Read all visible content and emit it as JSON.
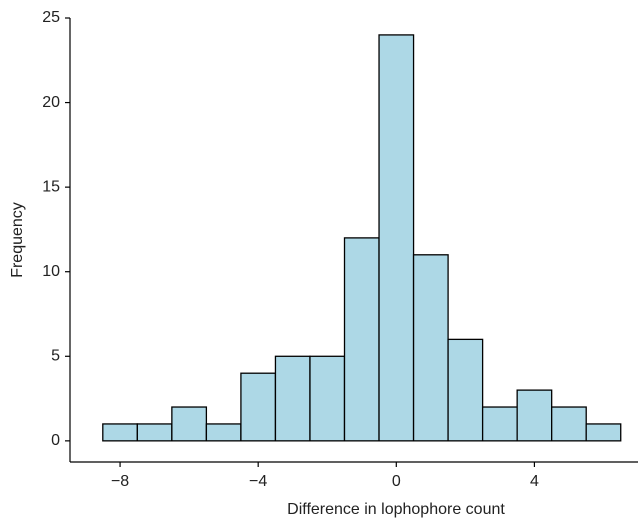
{
  "chart_data": {
    "type": "histogram",
    "xlabel": "Difference in lophophore count",
    "ylabel": "Frequency",
    "bins": [
      -8.5,
      -7.5,
      -6.5,
      -5.5,
      -4.5,
      -3.5,
      -2.5,
      -1.5,
      -0.5,
      0.5,
      1.5,
      2.5,
      3.5,
      4.5,
      5.5,
      6.5
    ],
    "values": [
      1,
      1,
      2,
      1,
      4,
      5,
      5,
      12,
      24,
      11,
      6,
      2,
      3,
      2,
      1
    ],
    "color": "#add8e6",
    "xlim": [
      -9.45,
      7.0
    ],
    "ylim": [
      -1.25,
      25
    ],
    "xticks": [
      {
        "value": -8,
        "label": "−8"
      },
      {
        "value": -4,
        "label": "−4"
      },
      0,
      4
    ],
    "yticks": [
      0,
      5,
      10,
      15,
      20,
      25
    ]
  }
}
